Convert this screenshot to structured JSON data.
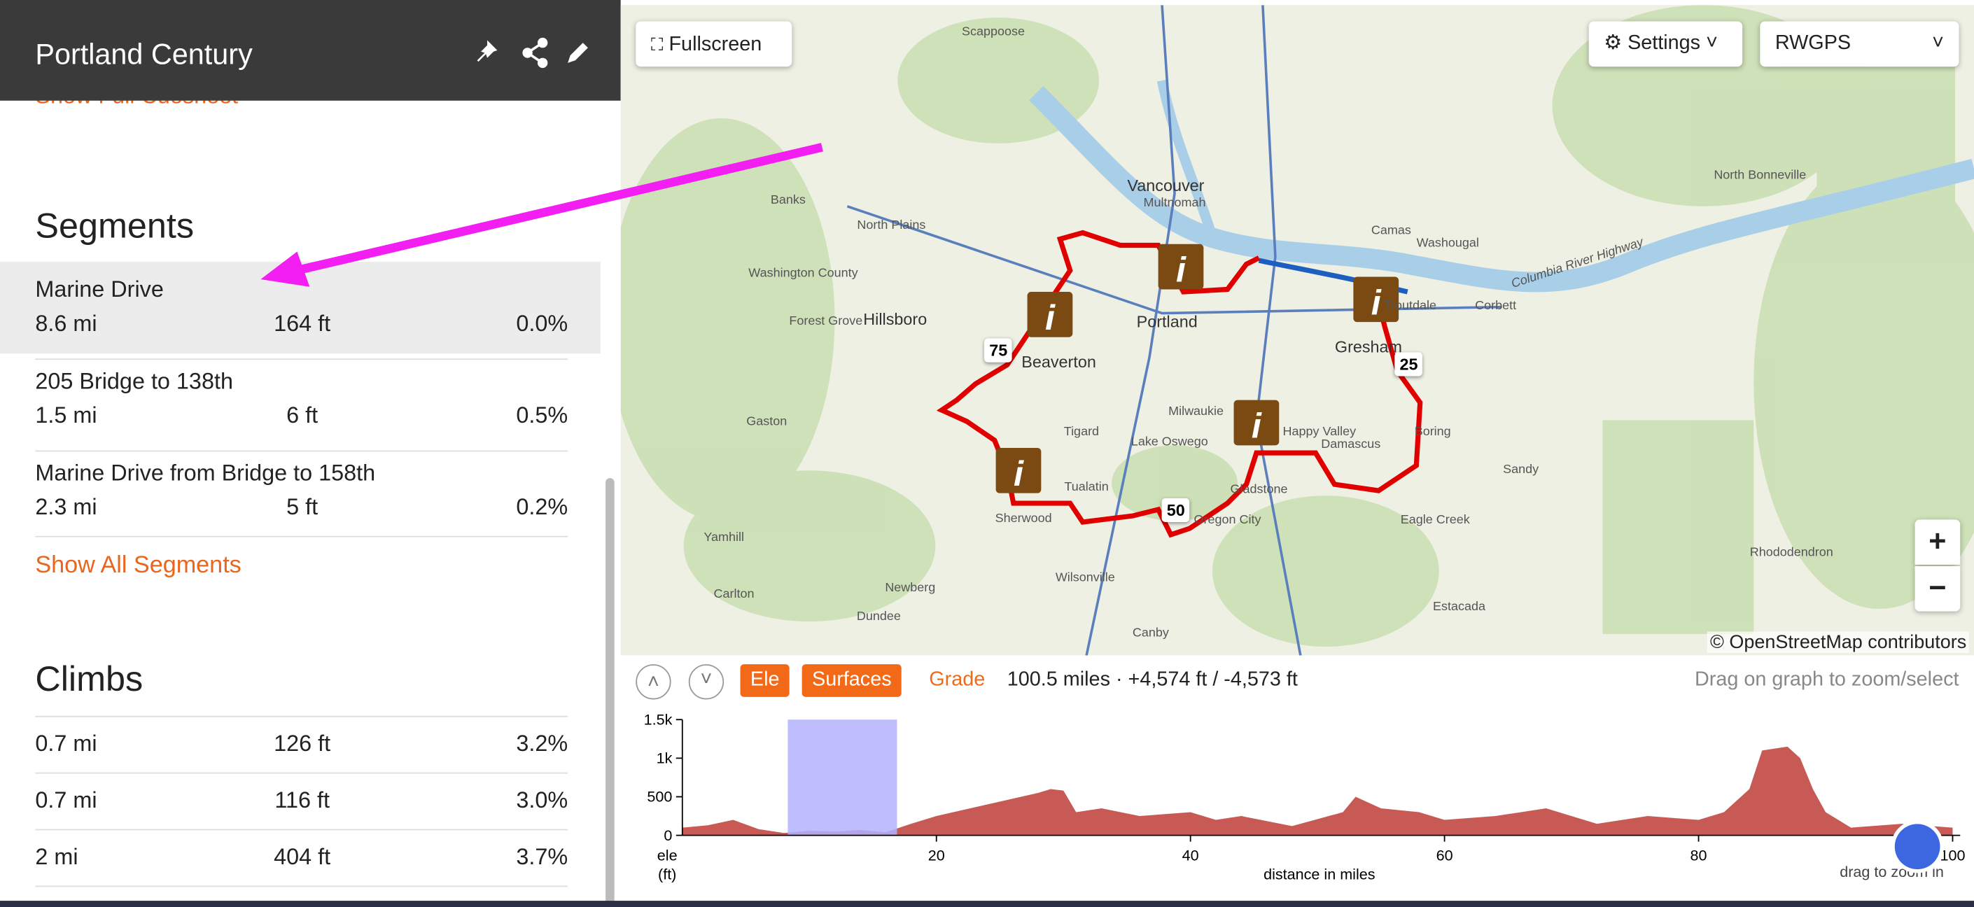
{
  "header": {
    "title": "Portland Century"
  },
  "sidebar": {
    "cuesheet_link": "Show Full Cuesheet",
    "segments": {
      "title": "Segments",
      "rows": [
        [
          "Marine Drive",
          "8.6 mi",
          "164 ft",
          "0.0%"
        ],
        [
          "205 Bridge to 138th",
          "1.5 mi",
          "6 ft",
          "0.5%"
        ],
        [
          "Marine Drive from Bridge to 158th",
          "2.3 mi",
          "5 ft",
          "0.2%"
        ]
      ],
      "show_all": "Show All Segments"
    },
    "climbs": {
      "title": "Climbs",
      "rows": [
        [
          "0.7 mi",
          "126 ft",
          "3.2%"
        ],
        [
          "0.7 mi",
          "116 ft",
          "3.0%"
        ],
        [
          "2 mi",
          "404 ft",
          "3.7%"
        ]
      ]
    }
  },
  "map": {
    "fullscreen": "Fullscreen",
    "settings": "Settings",
    "layer": "RWGPS",
    "zoom_in": "+",
    "zoom_out": "−",
    "attribution": "© OpenStreetMap contributors",
    "mile_markers": [
      75,
      25,
      50
    ],
    "places": [
      "Scappoose",
      "Vancouver",
      "Portland",
      "Hillsboro",
      "Beaverton",
      "Gresham",
      "Banks",
      "North Plains",
      "Forest Grove",
      "Washington County",
      "Tigard",
      "Lake Oswego",
      "Milwaukie",
      "Tualatin",
      "Sherwood",
      "Gladstone",
      "Oregon City",
      "Happy Valley",
      "Damascus",
      "Camas",
      "Washougal",
      "Troutdale",
      "Corbett",
      "Boring",
      "Sandy",
      "Eagle Creek",
      "Estacada",
      "Canby",
      "Wilsonville",
      "Newberg",
      "Dundee",
      "Carlton",
      "Yamhill",
      "Gaston",
      "Rhododendron",
      "Columbia River Highway",
      "North Bonneville",
      "Multnomah"
    ]
  },
  "elevation": {
    "buttons": [
      "Ele",
      "Surfaces",
      "Grade"
    ],
    "stats": "100.5 miles · +4,574 ft / -4,573 ft",
    "hint": "Drag on graph to zoom/select"
  },
  "chart_data": {
    "type": "area",
    "y_label_lines": [
      "ele",
      "(ft)"
    ],
    "x_label": "distance in miles",
    "note": "drag to zoom in",
    "x": [
      0,
      2,
      4,
      6,
      8,
      10,
      12,
      14,
      16,
      18,
      20,
      24,
      28,
      29,
      30,
      31,
      33,
      36,
      40,
      42,
      44,
      48,
      52,
      53,
      55,
      58,
      60,
      64,
      68,
      72,
      76,
      80,
      82,
      84,
      85,
      87,
      88,
      89,
      90,
      92,
      96,
      100
    ],
    "series": [
      {
        "name": "Elevation",
        "color": "#c85a55",
        "values": [
          100,
          130,
          200,
          80,
          30,
          60,
          50,
          70,
          40,
          150,
          250,
          400,
          550,
          600,
          580,
          300,
          350,
          250,
          300,
          200,
          250,
          120,
          300,
          500,
          350,
          300,
          200,
          250,
          350,
          150,
          250,
          200,
          300,
          600,
          1100,
          1150,
          1000,
          600,
          300,
          100,
          150,
          100
        ]
      }
    ],
    "selection": [
      8.3,
      16.9
    ],
    "selection_color": "#b3b3ff",
    "xlim": [
      0,
      100
    ],
    "ylim": [
      0,
      1500
    ],
    "xticks": [
      20,
      40,
      60,
      80,
      100
    ],
    "yticks": [
      0,
      500,
      {
        "value": 1000,
        "label": "1k"
      },
      {
        "value": 1500,
        "label": "1.5k"
      }
    ]
  }
}
